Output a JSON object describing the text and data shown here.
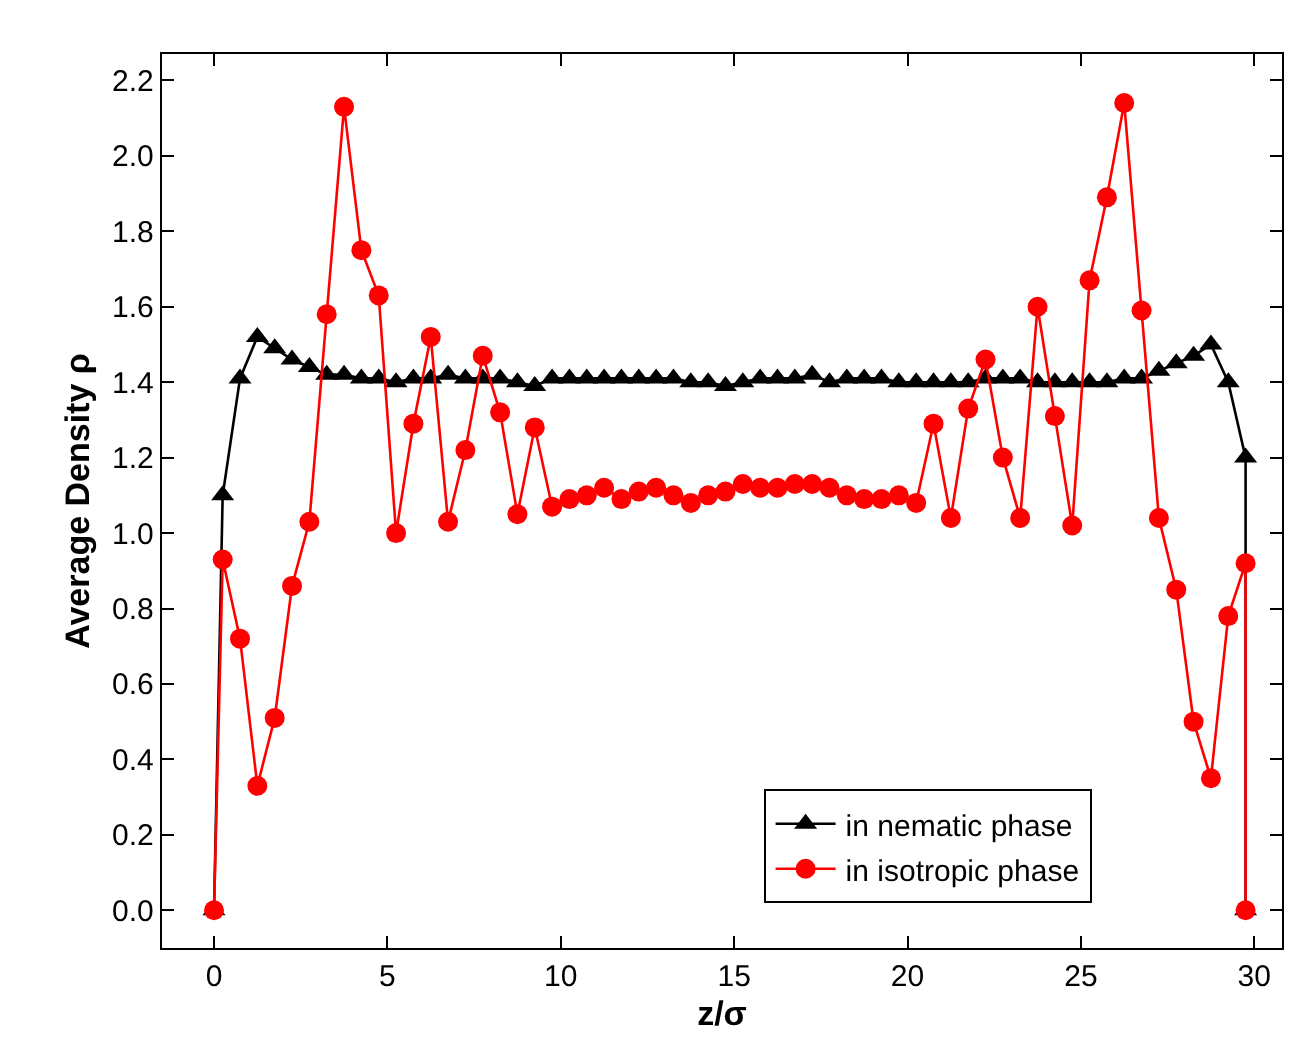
{
  "chart_data": {
    "type": "line",
    "xlabel": "z/σ",
    "ylabel": "Average Density ρ",
    "x": [
      0,
      0.25,
      0.75,
      1.25,
      1.75,
      2.25,
      2.75,
      3.25,
      3.75,
      4.25,
      4.75,
      5.25,
      5.75,
      6.25,
      6.75,
      7.25,
      7.75,
      8.25,
      8.75,
      9.25,
      9.75,
      10.25,
      10.75,
      11.25,
      11.75,
      12.25,
      12.75,
      13.25,
      13.75,
      14.25,
      14.75,
      15.25,
      15.75,
      16.25,
      16.75,
      17.25,
      17.75,
      18.25,
      18.75,
      19.25,
      19.75,
      20.25,
      20.75,
      21.25,
      21.75,
      22.25,
      22.75,
      23.25,
      23.75,
      24.25,
      24.75,
      25.25,
      25.75,
      26.25,
      26.75,
      27.25,
      27.75,
      28.25,
      28.75,
      29.25,
      29.75,
      29.75
    ],
    "series": [
      {
        "name": "in nematic phase",
        "color": "#000000",
        "marker": "triangle",
        "values": [
          0,
          1.1,
          1.41,
          1.52,
          1.49,
          1.46,
          1.44,
          1.42,
          1.42,
          1.41,
          1.41,
          1.4,
          1.41,
          1.41,
          1.42,
          1.41,
          1.41,
          1.41,
          1.4,
          1.39,
          1.41,
          1.41,
          1.41,
          1.41,
          1.41,
          1.41,
          1.41,
          1.41,
          1.4,
          1.4,
          1.39,
          1.4,
          1.41,
          1.41,
          1.41,
          1.42,
          1.4,
          1.41,
          1.41,
          1.41,
          1.4,
          1.4,
          1.4,
          1.4,
          1.4,
          1.41,
          1.41,
          1.41,
          1.4,
          1.4,
          1.4,
          1.4,
          1.4,
          1.41,
          1.41,
          1.43,
          1.45,
          1.47,
          1.5,
          1.4,
          1.2,
          0
        ]
      },
      {
        "name": "in isotropic phase",
        "color": "#ff0000",
        "marker": "circle",
        "values": [
          0,
          0.93,
          0.72,
          0.33,
          0.51,
          0.86,
          1.03,
          1.58,
          2.13,
          1.75,
          1.63,
          1.0,
          1.29,
          1.52,
          1.03,
          1.22,
          1.47,
          1.32,
          1.05,
          1.28,
          1.07,
          1.09,
          1.1,
          1.12,
          1.09,
          1.11,
          1.12,
          1.1,
          1.08,
          1.1,
          1.11,
          1.13,
          1.12,
          1.12,
          1.13,
          1.13,
          1.12,
          1.1,
          1.09,
          1.09,
          1.1,
          1.08,
          1.29,
          1.04,
          1.33,
          1.46,
          1.2,
          1.04,
          1.6,
          1.31,
          1.02,
          1.67,
          1.89,
          2.14,
          1.59,
          1.04,
          0.85,
          0.5,
          0.35,
          0.78,
          0.92,
          0
        ]
      }
    ],
    "xlim": [
      -1.5,
      30.8
    ],
    "xticks": [
      0,
      5,
      10,
      15,
      20,
      25,
      30
    ],
    "ylim": [
      -0.1,
      2.27
    ],
    "yticks": [
      {
        "value": 0,
        "label": "0.0"
      },
      {
        "value": 0.2,
        "label": "0.2"
      },
      {
        "value": 0.4,
        "label": "0.4"
      },
      {
        "value": 0.6,
        "label": "0.6"
      },
      {
        "value": 0.8,
        "label": "0.8"
      },
      {
        "value": 1,
        "label": "1.0"
      },
      {
        "value": 1.2,
        "label": "1.2"
      },
      {
        "value": 1.4,
        "label": "1.4"
      },
      {
        "value": 1.6,
        "label": "1.6"
      },
      {
        "value": 1.8,
        "label": "1.8"
      },
      {
        "value": 2,
        "label": "2.0"
      },
      {
        "value": 2.2,
        "label": "2.2"
      }
    ],
    "grid": false,
    "legend": "bottom right",
    "line_style": "solid"
  }
}
